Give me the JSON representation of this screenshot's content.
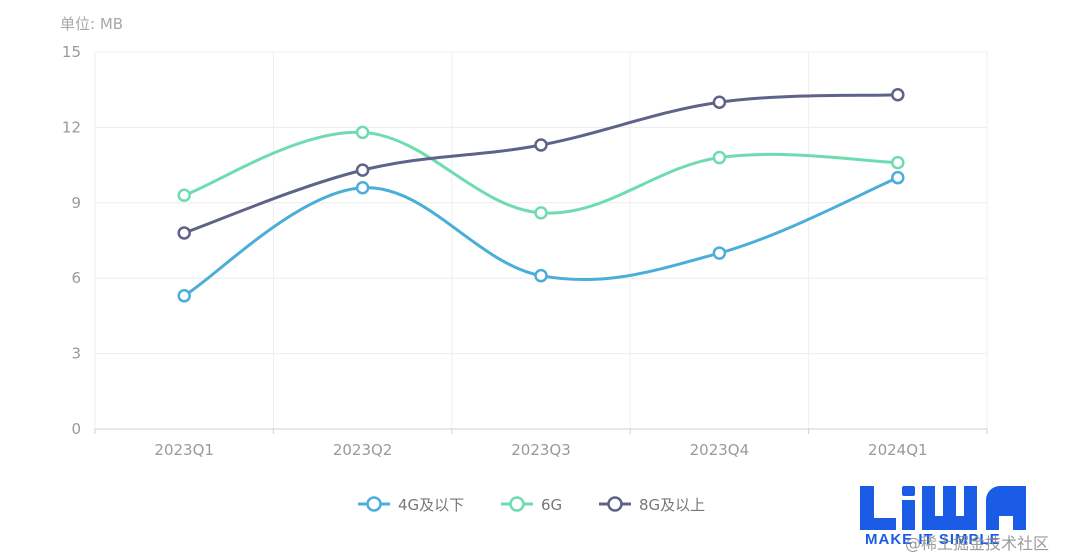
{
  "chart_data": {
    "type": "line",
    "unit_label": "单位: MB",
    "categories": [
      "2023Q1",
      "2023Q2",
      "2023Q3",
      "2023Q4",
      "2024Q1"
    ],
    "ylim": [
      0,
      15
    ],
    "yticks": [
      0,
      3,
      6,
      9,
      12,
      15
    ],
    "grid": true,
    "legend_position": "bottom",
    "series": [
      {
        "name": "4G及以下",
        "color": "#4aaed8",
        "values": [
          5.3,
          9.6,
          6.1,
          7.0,
          10.0
        ]
      },
      {
        "name": "6G",
        "color": "#6fdcb0",
        "values": [
          9.3,
          11.8,
          8.6,
          10.8,
          10.6
        ]
      },
      {
        "name": "8G及以上",
        "color": "#5e6389",
        "values": [
          7.8,
          10.3,
          11.3,
          13.0,
          13.3
        ]
      }
    ]
  },
  "branding": {
    "logo_text": "LiWA",
    "tagline": "MAKE IT SIMPLE",
    "watermark": "@稀土掘金技术社区",
    "logo_color": "#1a5ce6"
  }
}
